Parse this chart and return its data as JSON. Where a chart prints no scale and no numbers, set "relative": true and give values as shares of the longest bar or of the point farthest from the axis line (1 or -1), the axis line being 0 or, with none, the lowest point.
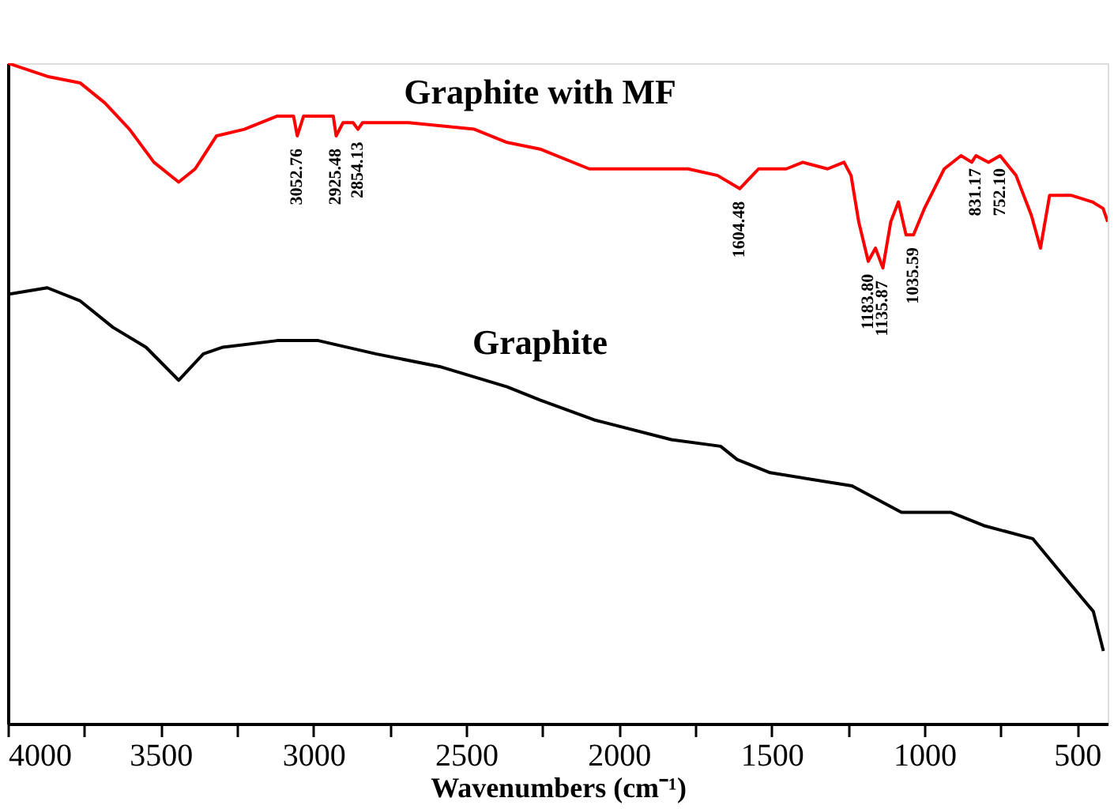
{
  "chart_data": {
    "type": "line",
    "relative": true,
    "xlabel": "Wavenumbers (cm⁻¹)",
    "xlim": [
      4000,
      400
    ],
    "xticks": [
      4000,
      {
        "value": 3750,
        "label": null
      },
      3500,
      {
        "value": 3250,
        "label": null
      },
      3000,
      {
        "value": 2750,
        "label": null
      },
      2500,
      {
        "value": 2250,
        "label": null
      },
      2000,
      {
        "value": 1750,
        "label": null
      },
      1500,
      {
        "value": 1250,
        "label": null
      },
      1000,
      {
        "value": 750,
        "label": null
      },
      500
    ],
    "grid": false,
    "line_style": "solid",
    "marker": "none",
    "series": [
      {
        "name": "Graphite with MF",
        "color": "#ff0000",
        "x": [
          4000,
          3871,
          3763,
          3683,
          3602,
          3522,
          3441,
          3387,
          3317,
          3226,
          3118,
          3065,
          3052.76,
          3032,
          2935,
          2925.48,
          2903,
          2870,
          2854.13,
          2839,
          2688,
          2473,
          2366,
          2258,
          2097,
          1935,
          1774,
          1677,
          1604.48,
          1543,
          1452,
          1398,
          1317,
          1263,
          1240,
          1215,
          1183.8,
          1160,
          1135.87,
          1110,
          1085,
          1060,
          1035.59,
          1000,
          935,
          880,
          845,
          831.17,
          790,
          752.1,
          700,
          650,
          620,
          590,
          520,
          450,
          415,
          400
        ],
        "values": [
          1.0,
          0.98,
          0.97,
          0.94,
          0.9,
          0.85,
          0.82,
          0.84,
          0.89,
          0.9,
          0.92,
          0.92,
          0.89,
          0.92,
          0.92,
          0.89,
          0.91,
          0.91,
          0.9,
          0.91,
          0.91,
          0.9,
          0.88,
          0.87,
          0.84,
          0.84,
          0.84,
          0.83,
          0.81,
          0.84,
          0.84,
          0.85,
          0.84,
          0.85,
          0.83,
          0.76,
          0.7,
          0.72,
          0.69,
          0.76,
          0.79,
          0.74,
          0.74,
          0.78,
          0.84,
          0.86,
          0.85,
          0.86,
          0.85,
          0.86,
          0.83,
          0.77,
          0.72,
          0.8,
          0.8,
          0.79,
          0.78,
          0.76
        ]
      },
      {
        "name": "Graphite",
        "color": "#000000",
        "x": [
          4000,
          3871,
          3763,
          3656,
          3548,
          3441,
          3360,
          3296,
          3118,
          2984,
          2796,
          2581,
          2366,
          2258,
          2081,
          1828,
          1667,
          1613,
          1505,
          1237,
          1075,
          914,
          806,
          645,
          538,
          447,
          414
        ],
        "values": [
          0.65,
          0.66,
          0.64,
          0.6,
          0.57,
          0.52,
          0.56,
          0.57,
          0.58,
          0.58,
          0.56,
          0.54,
          0.51,
          0.49,
          0.46,
          0.43,
          0.42,
          0.4,
          0.38,
          0.36,
          0.32,
          0.32,
          0.3,
          0.28,
          0.22,
          0.17,
          0.11
        ]
      }
    ],
    "annotations": [
      {
        "text": "3052.76",
        "x": 3052.76,
        "y": 0.89
      },
      {
        "text": "2925.48",
        "x": 2925.48,
        "y": 0.89
      },
      {
        "text": "2854.13",
        "x": 2854.13,
        "y": 0.9
      },
      {
        "text": "1604.48",
        "x": 1604.48,
        "y": 0.81
      },
      {
        "text": "1183.80",
        "x": 1183.8,
        "y": 0.7
      },
      {
        "text": "1135.87",
        "x": 1135.87,
        "y": 0.69
      },
      {
        "text": "1035.59",
        "x": 1035.59,
        "y": 0.74
      },
      {
        "text": "831.17",
        "x": 831.17,
        "y": 0.86
      },
      {
        "text": "752.10",
        "x": 752.1,
        "y": 0.86
      }
    ]
  }
}
